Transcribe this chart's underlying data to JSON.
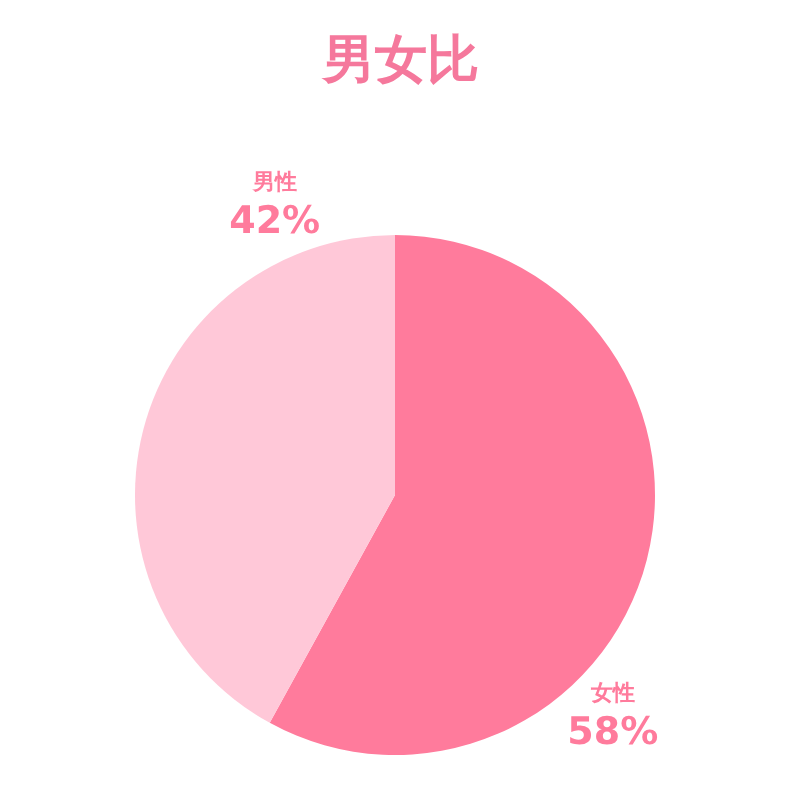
{
  "chart_data": {
    "type": "pie",
    "title": "男女比",
    "categories": [
      "女性",
      "男性"
    ],
    "values": [
      58,
      42
    ],
    "colors": [
      "#ff7b9c",
      "#ffc8d8"
    ],
    "value_labels": [
      "58%",
      "42%"
    ]
  }
}
